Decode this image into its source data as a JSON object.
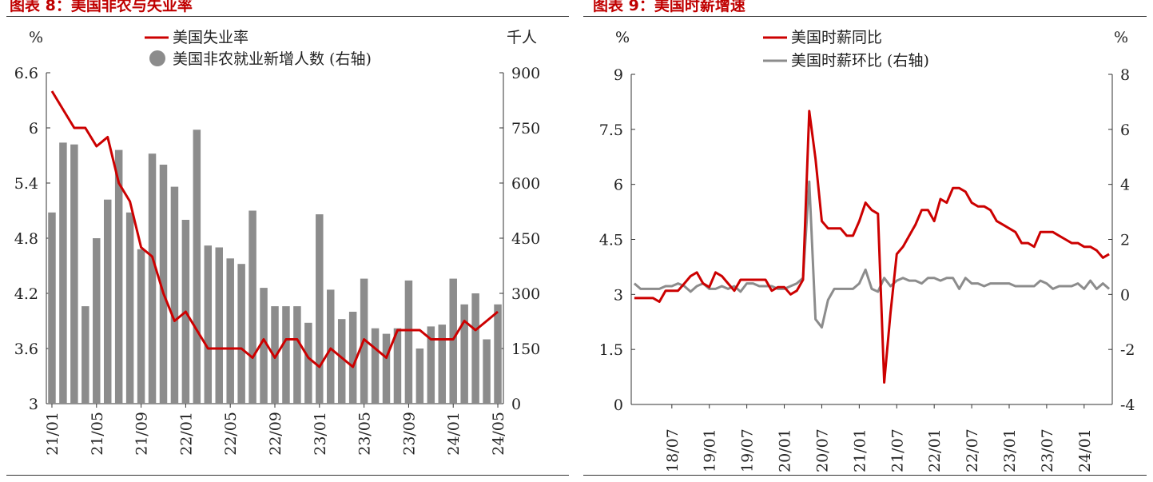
{
  "left_title": "图表 8：美国非农与失业率",
  "right_title": "图表 9：美国时薪增速",
  "colors": {
    "red": "#cc0000",
    "gray": "#8c8c8c",
    "axis": "#333333",
    "title": "#c00000"
  },
  "chart_data": [
    {
      "type": "bar+line",
      "left_unit": "%",
      "right_unit": "千人",
      "y_left": {
        "min": 3,
        "max": 6.6,
        "ticks": [
          "6.6",
          "6",
          "5.4",
          "4.8",
          "4.2",
          "3.6",
          "3"
        ]
      },
      "y_right": {
        "min": 0,
        "max": 900,
        "ticks": [
          "900",
          "750",
          "600",
          "450",
          "300",
          "150",
          "0"
        ]
      },
      "x_ticks": [
        "21/01",
        "21/05",
        "21/09",
        "22/01",
        "22/05",
        "22/09",
        "23/01",
        "23/05",
        "23/09",
        "24/01",
        "24/05"
      ],
      "months": [
        "21/01",
        "21/02",
        "21/03",
        "21/04",
        "21/05",
        "21/06",
        "21/07",
        "21/08",
        "21/09",
        "21/10",
        "21/11",
        "21/12",
        "22/01",
        "22/02",
        "22/03",
        "22/04",
        "22/05",
        "22/06",
        "22/07",
        "22/08",
        "22/09",
        "22/10",
        "22/11",
        "22/12",
        "23/01",
        "23/02",
        "23/03",
        "23/04",
        "23/05",
        "23/06",
        "23/07",
        "23/08",
        "23/09",
        "23/10",
        "23/11",
        "23/12",
        "24/01",
        "24/02",
        "24/03",
        "24/04",
        "24/05"
      ],
      "series": [
        {
          "name": "美国失业率",
          "kind": "line",
          "axis": "left",
          "values": [
            6.4,
            6.2,
            6.0,
            6.0,
            5.8,
            5.9,
            5.4,
            5.2,
            4.7,
            4.6,
            4.2,
            3.9,
            4.0,
            3.8,
            3.6,
            3.6,
            3.6,
            3.6,
            3.5,
            3.7,
            3.5,
            3.7,
            3.7,
            3.5,
            3.4,
            3.6,
            3.5,
            3.4,
            3.7,
            3.6,
            3.5,
            3.8,
            3.8,
            3.8,
            3.7,
            3.7,
            3.7,
            3.9,
            3.8,
            3.9,
            4.0
          ]
        },
        {
          "name": "美国非农就业新增人数 (右轴)",
          "kind": "bar",
          "axis": "right",
          "values": [
            520,
            710,
            705,
            265,
            450,
            555,
            690,
            520,
            420,
            680,
            650,
            590,
            500,
            745,
            430,
            425,
            395,
            380,
            525,
            315,
            265,
            265,
            265,
            220,
            515,
            310,
            230,
            250,
            340,
            205,
            190,
            205,
            335,
            150,
            210,
            215,
            340,
            270,
            300,
            175,
            270
          ]
        }
      ]
    },
    {
      "type": "line",
      "left_unit": "%",
      "right_unit": "%",
      "y_left": {
        "min": 0,
        "max": 9,
        "ticks": [
          "9",
          "7.5",
          "6",
          "4.5",
          "3",
          "1.5",
          "0"
        ]
      },
      "y_right": {
        "min": -4,
        "max": 8,
        "ticks": [
          "8",
          "6",
          "4",
          "2",
          "0",
          "-2",
          "-4"
        ]
      },
      "x_ticks": [
        "18/07",
        "19/01",
        "19/07",
        "20/01",
        "20/07",
        "21/01",
        "21/07",
        "22/01",
        "22/07",
        "23/01",
        "23/07",
        "24/01"
      ],
      "months": [
        "18/01",
        "18/02",
        "18/03",
        "18/04",
        "18/05",
        "18/06",
        "18/07",
        "18/08",
        "18/09",
        "18/10",
        "18/11",
        "18/12",
        "19/01",
        "19/02",
        "19/03",
        "19/04",
        "19/05",
        "19/06",
        "19/07",
        "19/08",
        "19/09",
        "19/10",
        "19/11",
        "19/12",
        "20/01",
        "20/02",
        "20/03",
        "20/04",
        "20/05",
        "20/06",
        "20/07",
        "20/08",
        "20/09",
        "20/10",
        "20/11",
        "20/12",
        "21/01",
        "21/02",
        "21/03",
        "21/04",
        "21/05",
        "21/06",
        "21/07",
        "21/08",
        "21/09",
        "21/10",
        "21/11",
        "21/12",
        "22/01",
        "22/02",
        "22/03",
        "22/04",
        "22/05",
        "22/06",
        "22/07",
        "22/08",
        "22/09",
        "22/10",
        "22/11",
        "22/12",
        "23/01",
        "23/02",
        "23/03",
        "23/04",
        "23/05",
        "23/06",
        "23/07",
        "23/08",
        "23/09",
        "23/10",
        "23/11",
        "23/12",
        "24/01",
        "24/02",
        "24/03",
        "24/04",
        "24/05"
      ],
      "series": [
        {
          "name": "美国时薪同比",
          "kind": "line",
          "axis": "left",
          "values": [
            2.9,
            2.9,
            2.9,
            2.9,
            2.8,
            3.1,
            3.1,
            3.1,
            3.3,
            3.5,
            3.6,
            3.3,
            3.2,
            3.6,
            3.5,
            3.3,
            3.1,
            3.4,
            3.4,
            3.4,
            3.4,
            3.4,
            3.1,
            3.2,
            3.2,
            3.0,
            3.1,
            3.4,
            8.0,
            6.7,
            5.0,
            4.8,
            4.8,
            4.8,
            4.6,
            4.6,
            5.0,
            5.5,
            5.3,
            5.2,
            0.6,
            2.5,
            4.1,
            4.3,
            4.6,
            4.9,
            5.3,
            5.3,
            5.0,
            5.6,
            5.5,
            5.9,
            5.9,
            5.8,
            5.5,
            5.4,
            5.4,
            5.3,
            5.0,
            4.9,
            4.8,
            4.7,
            4.4,
            4.4,
            4.3,
            4.7,
            4.7,
            4.7,
            4.6,
            4.5,
            4.4,
            4.4,
            4.3,
            4.3,
            4.2,
            4.0,
            4.1
          ]
        },
        {
          "name": "美国时薪环比 (右轴)",
          "kind": "line",
          "axis": "right",
          "values": [
            0.4,
            0.2,
            0.2,
            0.2,
            0.2,
            0.3,
            0.3,
            0.4,
            0.3,
            0.1,
            0.3,
            0.4,
            0.2,
            0.2,
            0.3,
            0.2,
            0.3,
            0.1,
            0.4,
            0.4,
            0.3,
            0.3,
            0.3,
            0.2,
            0.2,
            0.3,
            0.4,
            0.6,
            4.1,
            -0.9,
            -1.2,
            -0.2,
            0.2,
            0.2,
            0.2,
            0.2,
            0.4,
            0.9,
            0.2,
            0.1,
            0.6,
            0.3,
            0.5,
            0.6,
            0.5,
            0.5,
            0.4,
            0.6,
            0.6,
            0.5,
            0.6,
            0.6,
            0.2,
            0.6,
            0.4,
            0.4,
            0.3,
            0.4,
            0.4,
            0.4,
            0.4,
            0.3,
            0.3,
            0.3,
            0.3,
            0.5,
            0.4,
            0.2,
            0.3,
            0.3,
            0.3,
            0.4,
            0.2,
            0.5,
            0.2,
            0.4,
            0.2
          ]
        }
      ]
    }
  ]
}
